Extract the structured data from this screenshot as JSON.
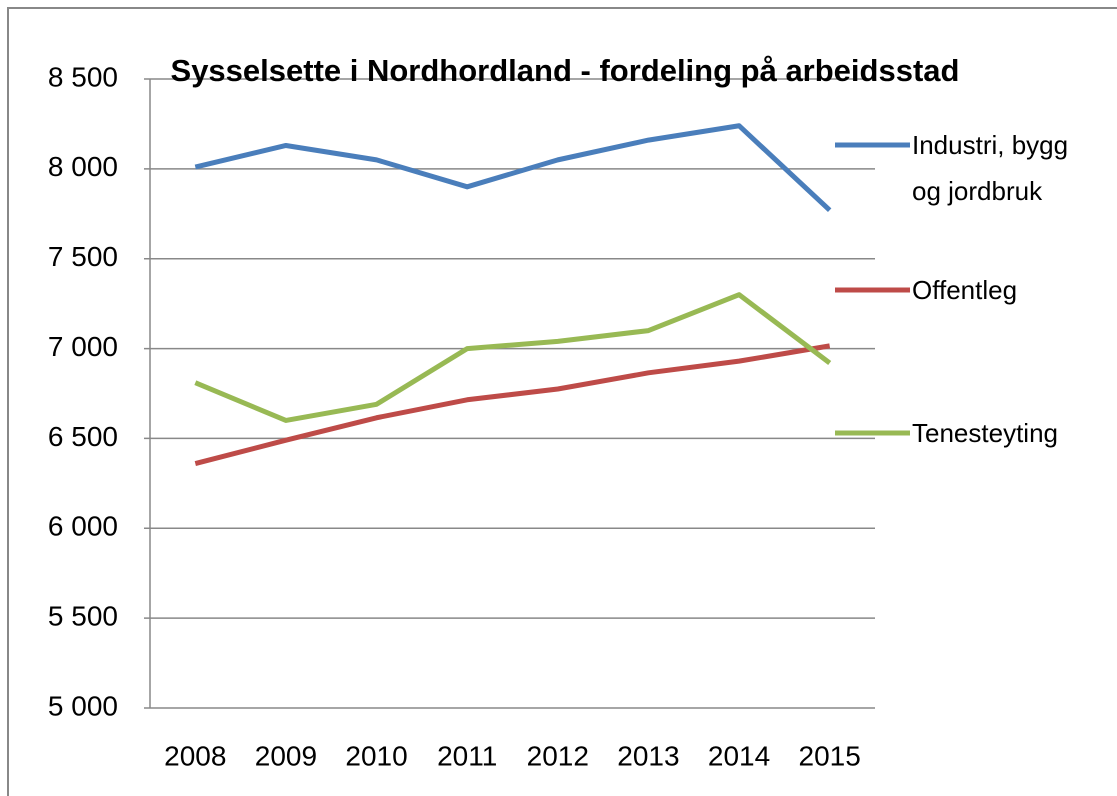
{
  "chart_data": {
    "type": "line",
    "title": "Sysselsette i Nordhordland - fordeling på arbeidsstad",
    "categories": [
      "2008",
      "2009",
      "2010",
      "2011",
      "2012",
      "2013",
      "2014",
      "2015"
    ],
    "series": [
      {
        "name": "Industri, bygg og jordbruk",
        "color": "#4a7ebb",
        "values": [
          8010,
          8130,
          8050,
          7900,
          8050,
          8160,
          8240,
          7770
        ]
      },
      {
        "name": "Offentleg",
        "color": "#be4b48",
        "values": [
          6360,
          6490,
          6615,
          6715,
          6775,
          6865,
          6930,
          7015
        ]
      },
      {
        "name": "Tenesteyting",
        "color": "#98b954",
        "values": [
          6810,
          6600,
          6690,
          7000,
          7040,
          7100,
          7300,
          6920
        ]
      }
    ],
    "ylim": [
      5000,
      8500
    ],
    "yticks": [
      {
        "value": 5000,
        "label": "5 000"
      },
      {
        "value": 5500,
        "label": "5 500"
      },
      {
        "value": 6000,
        "label": "6 000"
      },
      {
        "value": 6500,
        "label": "6 500"
      },
      {
        "value": 7000,
        "label": "7 000"
      },
      {
        "value": 7500,
        "label": "7 500"
      },
      {
        "value": 8000,
        "label": "8 000"
      },
      {
        "value": 8500,
        "label": "8 500"
      }
    ],
    "grid": true,
    "legend": "right"
  }
}
